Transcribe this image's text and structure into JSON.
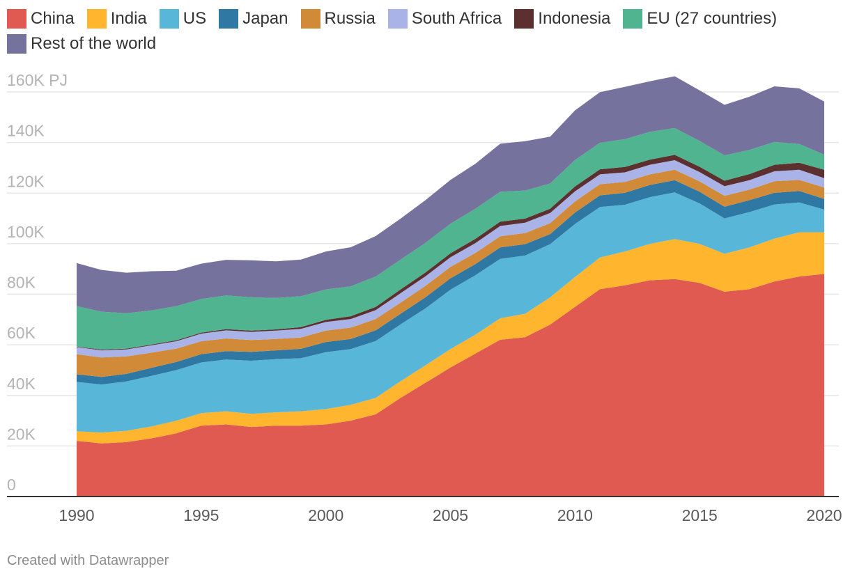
{
  "credit": "Created with Datawrapper",
  "chart_data": {
    "type": "area",
    "stacked": true,
    "title": "",
    "xlabel": "",
    "ylabel": "",
    "y_unit_label": "160K PJ",
    "legend_position": "top-left",
    "grid": true,
    "ylim": [
      0,
      160000
    ],
    "xlim": [
      1990,
      2020
    ],
    "y_ticks": [
      {
        "value": 0,
        "label": "0"
      },
      {
        "value": 20000,
        "label": "20K"
      },
      {
        "value": 40000,
        "label": "40K"
      },
      {
        "value": 60000,
        "label": "60K"
      },
      {
        "value": 80000,
        "label": "80K"
      },
      {
        "value": 100000,
        "label": "100K"
      },
      {
        "value": 120000,
        "label": "120K"
      },
      {
        "value": 140000,
        "label": "140K"
      },
      {
        "value": 160000,
        "label": "160K PJ"
      }
    ],
    "x_ticks": [
      {
        "value": 1990,
        "label": "1990"
      },
      {
        "value": 1995,
        "label": "1995"
      },
      {
        "value": 2000,
        "label": "2000"
      },
      {
        "value": 2005,
        "label": "2005"
      },
      {
        "value": 2010,
        "label": "2010"
      },
      {
        "value": 2015,
        "label": "2015"
      },
      {
        "value": 2020,
        "label": "2020"
      }
    ],
    "x": [
      1990,
      1991,
      1992,
      1993,
      1994,
      1995,
      1996,
      1997,
      1998,
      1999,
      2000,
      2001,
      2002,
      2003,
      2004,
      2005,
      2006,
      2007,
      2008,
      2009,
      2010,
      2011,
      2012,
      2013,
      2014,
      2015,
      2016,
      2017,
      2018,
      2019,
      2020
    ],
    "series": [
      {
        "name": "China",
        "color": "#e15a51",
        "values": [
          22000,
          21000,
          21500,
          23000,
          25000,
          28000,
          28500,
          27500,
          28000,
          28000,
          28500,
          30000,
          32500,
          39000,
          45000,
          51000,
          56500,
          62000,
          63000,
          68000,
          75000,
          82000,
          83500,
          85500,
          86000,
          84500,
          81000,
          82000,
          85000,
          87000,
          88000
        ]
      },
      {
        "name": "India",
        "color": "#ffb52e",
        "values": [
          3800,
          4300,
          4500,
          4700,
          5000,
          5000,
          5200,
          5200,
          5300,
          5700,
          6100,
          6300,
          6500,
          6600,
          6900,
          7300,
          7500,
          8500,
          9300,
          10800,
          11800,
          12500,
          13400,
          14400,
          15800,
          15400,
          15000,
          16500,
          17000,
          17500,
          16500
        ]
      },
      {
        "name": "US",
        "color": "#58b6d8",
        "values": [
          19500,
          19000,
          19500,
          20000,
          20000,
          20000,
          20500,
          21000,
          21000,
          21000,
          22500,
          22000,
          22500,
          22500,
          22500,
          23500,
          23500,
          23500,
          23000,
          21000,
          21000,
          20000,
          18500,
          18500,
          18500,
          16000,
          14000,
          14000,
          13500,
          11800,
          9000
        ]
      },
      {
        "name": "Japan",
        "color": "#2f78a3",
        "values": [
          3000,
          3000,
          3000,
          3200,
          3200,
          3300,
          3300,
          3500,
          3500,
          3700,
          4000,
          4000,
          4200,
          4200,
          4400,
          4500,
          4400,
          4500,
          4500,
          4000,
          4500,
          4600,
          4700,
          4800,
          4800,
          4600,
          4600,
          4700,
          4600,
          4500,
          4200
        ]
      },
      {
        "name": "Russia",
        "color": "#d18b38",
        "values": [
          8000,
          7700,
          6900,
          6000,
          5300,
          5100,
          5000,
          4700,
          4500,
          4500,
          4500,
          4500,
          4500,
          4400,
          4500,
          4500,
          4400,
          4400,
          4400,
          4300,
          4400,
          4400,
          4300,
          4200,
          4100,
          4100,
          4300,
          4200,
          4600,
          4400,
          4500
        ]
      },
      {
        "name": "South Africa",
        "color": "#aab3e8",
        "values": [
          2800,
          2800,
          2800,
          2900,
          2900,
          3000,
          3200,
          3200,
          3300,
          3400,
          3400,
          3400,
          3500,
          3700,
          3800,
          3800,
          3900,
          4100,
          4100,
          4000,
          4000,
          3900,
          3800,
          3800,
          3800,
          3700,
          3800,
          3700,
          3900,
          4000,
          3700
        ]
      },
      {
        "name": "Indonesia",
        "color": "#5d3030",
        "values": [
          200,
          300,
          300,
          300,
          400,
          400,
          500,
          500,
          500,
          700,
          900,
          1100,
          1300,
          1500,
          1500,
          1600,
          1700,
          1700,
          1600,
          1700,
          1900,
          2000,
          2100,
          2000,
          2100,
          2100,
          2200,
          2400,
          2600,
          2800,
          3300
        ]
      },
      {
        "name": "EU (27 countries)",
        "color": "#4fb48f",
        "values": [
          16000,
          15000,
          14000,
          13500,
          13500,
          13300,
          13300,
          13200,
          12400,
          12200,
          12000,
          11800,
          12000,
          11800,
          11700,
          11700,
          11900,
          11800,
          11100,
          10000,
          10500,
          10500,
          11000,
          11000,
          10600,
          10200,
          10000,
          9600,
          9000,
          7400,
          6000
        ]
      },
      {
        "name": "Rest of the world",
        "color": "#75739e",
        "values": [
          17000,
          16500,
          16000,
          15500,
          14000,
          14000,
          14100,
          14600,
          14500,
          14500,
          15000,
          15500,
          16000,
          16200,
          16900,
          17300,
          17800,
          19000,
          19500,
          18500,
          19600,
          20000,
          20700,
          20000,
          20500,
          20000,
          20000,
          21000,
          22000,
          22000,
          21000
        ]
      }
    ]
  }
}
